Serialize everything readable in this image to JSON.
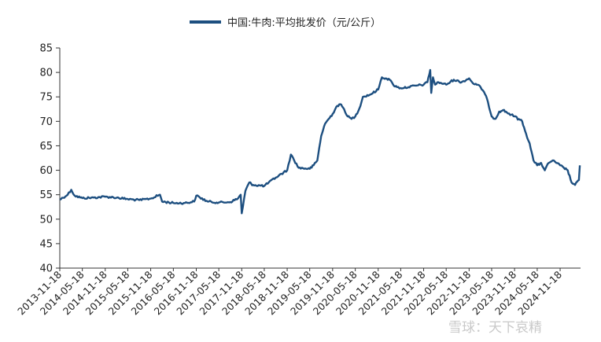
{
  "colors": {
    "series": "#1d4f80",
    "axis": "#333333",
    "text": "#222222",
    "watermark": "#c9c9c9"
  },
  "watermark": {
    "text": "雪球：天下哀精"
  },
  "chart_data": {
    "type": "line",
    "title": "",
    "xlabel": "",
    "ylabel": "",
    "ylim": [
      40,
      85
    ],
    "yticks": [
      40,
      45,
      50,
      55,
      60,
      65,
      70,
      75,
      80,
      85
    ],
    "xlim": [
      "2013-11-18",
      "2025-05-01"
    ],
    "xticks": [
      "2013-11-18",
      "2014-05-18",
      "2014-11-18",
      "2015-05-18",
      "2015-11-18",
      "2016-05-18",
      "2016-11-18",
      "2017-05-18",
      "2017-11-18",
      "2018-05-18",
      "2018-11-18",
      "2019-05-18",
      "2019-11-18",
      "2020-05-18",
      "2020-11-18",
      "2021-05-18",
      "2021-11-18",
      "2022-05-18",
      "2022-11-18",
      "2023-05-18",
      "2023-11-18",
      "2024-05-18",
      "2024-11-18"
    ],
    "grid": false,
    "legend": "top-center",
    "series": [
      {
        "name": "中国:牛肉:平均批发价（元/公斤）",
        "x": [
          "2013-11-18",
          "2014-01-20",
          "2014-02-18",
          "2014-03-18",
          "2014-05-18",
          "2014-08-18",
          "2014-11-18",
          "2015-02-18",
          "2015-05-18",
          "2015-08-18",
          "2015-11-18",
          "2016-02-01",
          "2016-02-18",
          "2016-05-18",
          "2016-08-18",
          "2016-11-01",
          "2016-11-18",
          "2017-02-18",
          "2017-05-18",
          "2017-08-18",
          "2017-10-18",
          "2017-11-10",
          "2017-11-18",
          "2017-12-18",
          "2018-01-18",
          "2018-02-18",
          "2018-05-18",
          "2018-08-18",
          "2018-11-18",
          "2018-12-18",
          "2019-02-18",
          "2019-05-18",
          "2019-06-18",
          "2019-07-18",
          "2019-08-18",
          "2019-09-18",
          "2019-10-18",
          "2019-11-18",
          "2019-12-18",
          "2020-01-18",
          "2020-02-18",
          "2020-03-18",
          "2020-04-18",
          "2020-05-18",
          "2020-06-18",
          "2020-07-18",
          "2020-09-18",
          "2020-11-18",
          "2020-12-18",
          "2021-01-18",
          "2021-02-18",
          "2021-03-18",
          "2021-04-18",
          "2021-05-18",
          "2021-07-18",
          "2021-09-18",
          "2021-11-18",
          "2021-12-18",
          "2022-01-10",
          "2022-01-18",
          "2022-02-01",
          "2022-02-18",
          "2022-03-18",
          "2022-05-18",
          "2022-07-18",
          "2022-09-18",
          "2022-11-18",
          "2022-12-18",
          "2023-01-18",
          "2023-02-18",
          "2023-03-18",
          "2023-04-18",
          "2023-05-18",
          "2023-06-18",
          "2023-07-18",
          "2023-08-18",
          "2023-09-18",
          "2023-11-18",
          "2024-01-18",
          "2024-02-18",
          "2024-03-18",
          "2024-04-18",
          "2024-05-18",
          "2024-06-18",
          "2024-07-18",
          "2024-08-18",
          "2024-09-18",
          "2024-10-18",
          "2024-11-18",
          "2024-12-18",
          "2025-01-18",
          "2025-02-18",
          "2025-03-18",
          "2025-04-18",
          "2025-04-25"
        ],
        "values": [
          54.0,
          55.0,
          56.0,
          54.8,
          54.3,
          54.4,
          54.6,
          54.4,
          54.1,
          53.9,
          54.2,
          55.0,
          53.6,
          53.3,
          53.3,
          53.6,
          54.8,
          53.6,
          53.4,
          53.5,
          54.2,
          55.0,
          51.2,
          55.8,
          57.5,
          57.0,
          56.8,
          58.5,
          60.0,
          63.2,
          60.5,
          60.3,
          61.0,
          62.0,
          67.0,
          69.5,
          70.5,
          71.5,
          73.0,
          73.5,
          72.5,
          71.0,
          70.5,
          71.0,
          72.5,
          75.0,
          75.5,
          76.5,
          79.0,
          78.8,
          78.5,
          77.5,
          77.0,
          76.8,
          77.0,
          77.3,
          77.5,
          78.0,
          80.5,
          75.8,
          79.0,
          77.5,
          78.0,
          77.5,
          78.5,
          78.0,
          78.8,
          77.8,
          77.5,
          77.0,
          76.0,
          74.0,
          71.0,
          70.5,
          72.0,
          72.3,
          71.8,
          71.0,
          70.0,
          67.5,
          65.5,
          62.0,
          61.0,
          61.5,
          60.0,
          61.5,
          62.0,
          61.5,
          61.0,
          60.5,
          60.0,
          57.5,
          57.0,
          58.0,
          61.0
        ]
      }
    ]
  }
}
